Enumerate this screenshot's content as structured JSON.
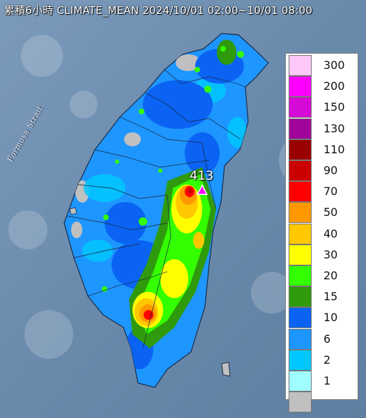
{
  "title": "累積6小時 CLIMATE_MEAN 2024/10/01 02:00~10/01 08:00",
  "strait_label": "Formosa Strait",
  "max_value_label": "413",
  "legend": {
    "levels": [
      {
        "label": "300",
        "color": "#ffc8f8"
      },
      {
        "label": "200",
        "color": "#ff00ff"
      },
      {
        "label": "150",
        "color": "#d60ad6"
      },
      {
        "label": "130",
        "color": "#a0049a"
      },
      {
        "label": "110",
        "color": "#9b0000"
      },
      {
        "label": "90",
        "color": "#cc0000"
      },
      {
        "label": "70",
        "color": "#ff0000"
      },
      {
        "label": "50",
        "color": "#ff9800"
      },
      {
        "label": "40",
        "color": "#ffc800"
      },
      {
        "label": "30",
        "color": "#ffff00"
      },
      {
        "label": "20",
        "color": "#33ff00"
      },
      {
        "label": "15",
        "color": "#2e9a0c"
      },
      {
        "label": "10",
        "color": "#0a63f3"
      },
      {
        "label": "6",
        "color": "#1e96ff"
      },
      {
        "label": "2",
        "color": "#00c8ff"
      },
      {
        "label": "1",
        "color": "#9ffcff"
      },
      {
        "label": "",
        "color": "#c0c0c0"
      }
    ]
  }
}
